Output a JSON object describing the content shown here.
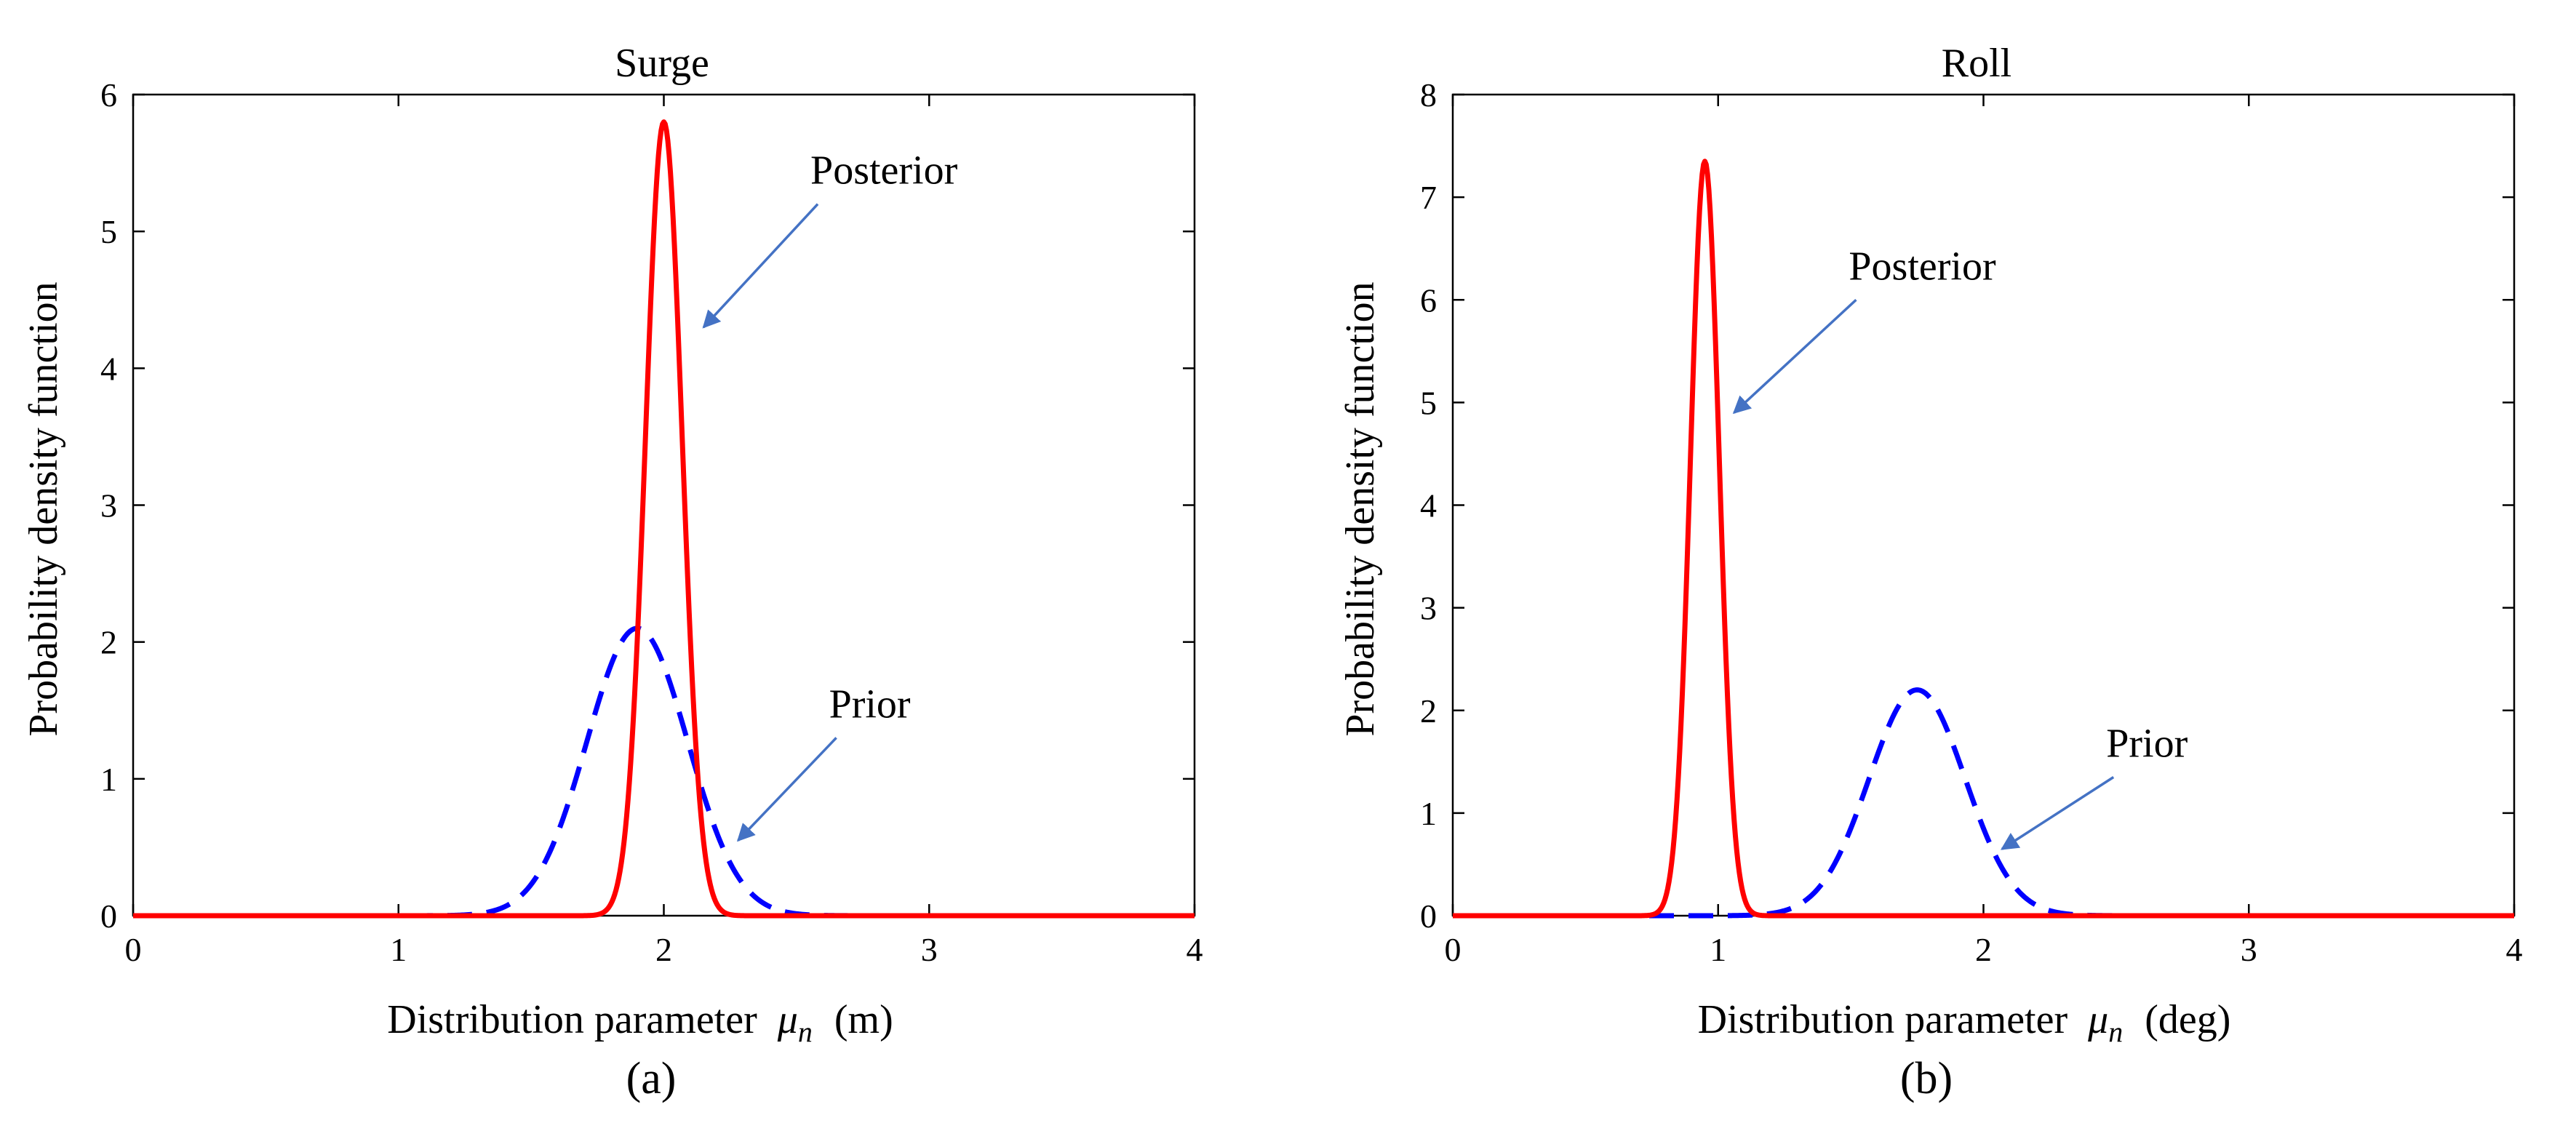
{
  "chart_data": [
    {
      "type": "line",
      "panel": "a",
      "title": "Surge",
      "xlabel_prefix": "Distribution parameter",
      "xlabel_symbol": "μ",
      "xlabel_sub": "n",
      "xlabel_unit": "(m)",
      "ylabel": "Probability density function",
      "xlim": [
        0,
        4
      ],
      "ylim": [
        0,
        6
      ],
      "xticks": [
        0,
        1,
        2,
        3,
        4
      ],
      "yticks": [
        0,
        1,
        2,
        3,
        4,
        5,
        6
      ],
      "caption": "(a)",
      "series": [
        {
          "name": "Posterior",
          "style": "solid",
          "color": "#ff0000",
          "distribution": "normal",
          "mean": 2.0,
          "peak": 5.8
        },
        {
          "name": "Prior",
          "style": "dashed",
          "color": "#0000ff",
          "distribution": "normal",
          "mean": 1.9,
          "peak": 2.1
        }
      ],
      "annotations": [
        {
          "text": "Posterior",
          "target_x": 2.15,
          "target_y": 4.3,
          "arrow_from_x": 2.58,
          "arrow_from_y": 5.2
        },
        {
          "text": "Prior",
          "target_x": 2.28,
          "target_y": 0.55,
          "arrow_from_x": 2.65,
          "arrow_from_y": 1.3
        }
      ]
    },
    {
      "type": "line",
      "panel": "b",
      "title": "Roll",
      "xlabel_prefix": "Distribution parameter",
      "xlabel_symbol": "μ",
      "xlabel_sub": "n",
      "xlabel_unit": "(deg)",
      "ylabel": "Probability density function",
      "xlim": [
        0,
        4
      ],
      "ylim": [
        0,
        8
      ],
      "xticks": [
        0,
        1,
        2,
        3,
        4
      ],
      "yticks": [
        0,
        1,
        2,
        3,
        4,
        5,
        6,
        7,
        8
      ],
      "caption": "(b)",
      "series": [
        {
          "name": "Posterior",
          "style": "solid",
          "color": "#ff0000",
          "distribution": "normal",
          "mean": 0.95,
          "peak": 7.35
        },
        {
          "name": "Prior",
          "style": "dashed",
          "color": "#0000ff",
          "distribution": "normal",
          "mean": 1.75,
          "peak": 2.2
        }
      ],
      "annotations": [
        {
          "text": "Posterior",
          "target_x": 1.06,
          "target_y": 4.9,
          "arrow_from_x": 1.52,
          "arrow_from_y": 6.0
        },
        {
          "text": "Prior",
          "target_x": 2.07,
          "target_y": 0.65,
          "arrow_from_x": 2.49,
          "arrow_from_y": 1.35
        }
      ]
    }
  ]
}
